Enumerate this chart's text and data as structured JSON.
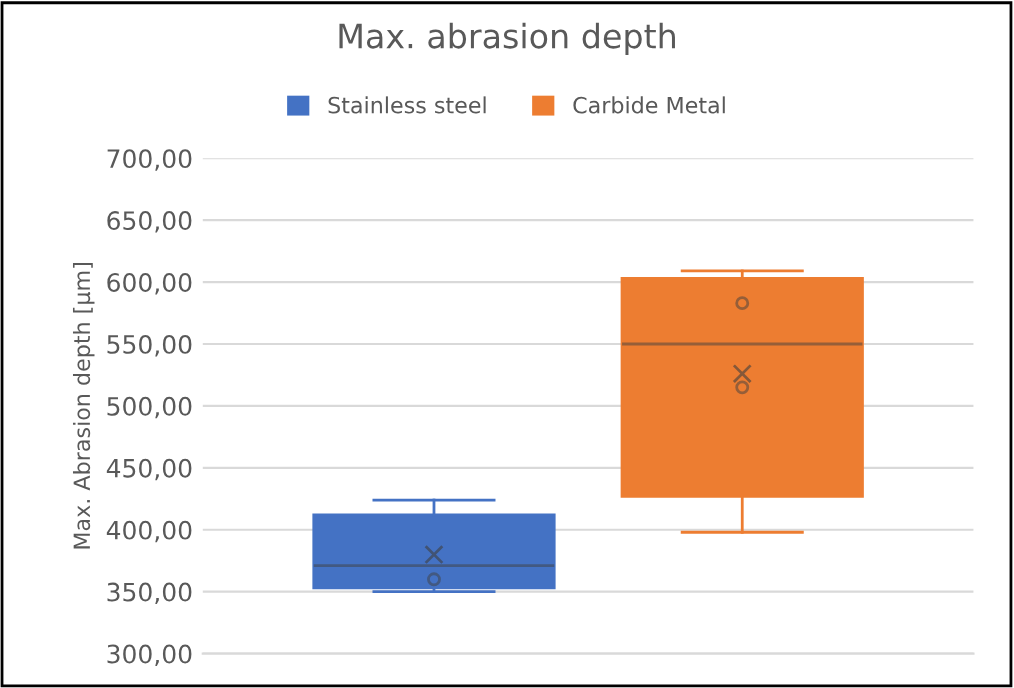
{
  "chart_data": {
    "type": "box",
    "title": "Max. abrasion depth",
    "ylabel": "Max. Abrasion depth [µm]",
    "categories": [
      null
    ],
    "series": [
      {
        "name": "Stainless steel",
        "color": "#4472c4",
        "boxes": [
          {
            "low": 350,
            "q1": 353,
            "median": 371,
            "q3": 412,
            "high": 424,
            "mean": 380,
            "outliers": [
              360
            ]
          }
        ]
      },
      {
        "name": "Carbide Metal",
        "color": "#ed7d31",
        "boxes": [
          {
            "low": 398,
            "q1": 427,
            "median": 550,
            "q3": 603,
            "high": 609,
            "mean": 526,
            "outliers": [
              583,
              515
            ]
          }
        ]
      }
    ],
    "ylim": [
      300,
      700
    ],
    "yticks": [
      {
        "value": 300,
        "label": "300,00"
      },
      {
        "value": 350,
        "label": "350,00"
      },
      {
        "value": 400,
        "label": "400,00"
      },
      {
        "value": 450,
        "label": "450,00"
      },
      {
        "value": 500,
        "label": "500,00"
      },
      {
        "value": 550,
        "label": "550,00"
      },
      {
        "value": 600,
        "label": "600,00"
      },
      {
        "value": 650,
        "label": "650,00"
      },
      {
        "value": 700,
        "label": "700,00"
      }
    ],
    "grid": "y",
    "legend": "top"
  }
}
